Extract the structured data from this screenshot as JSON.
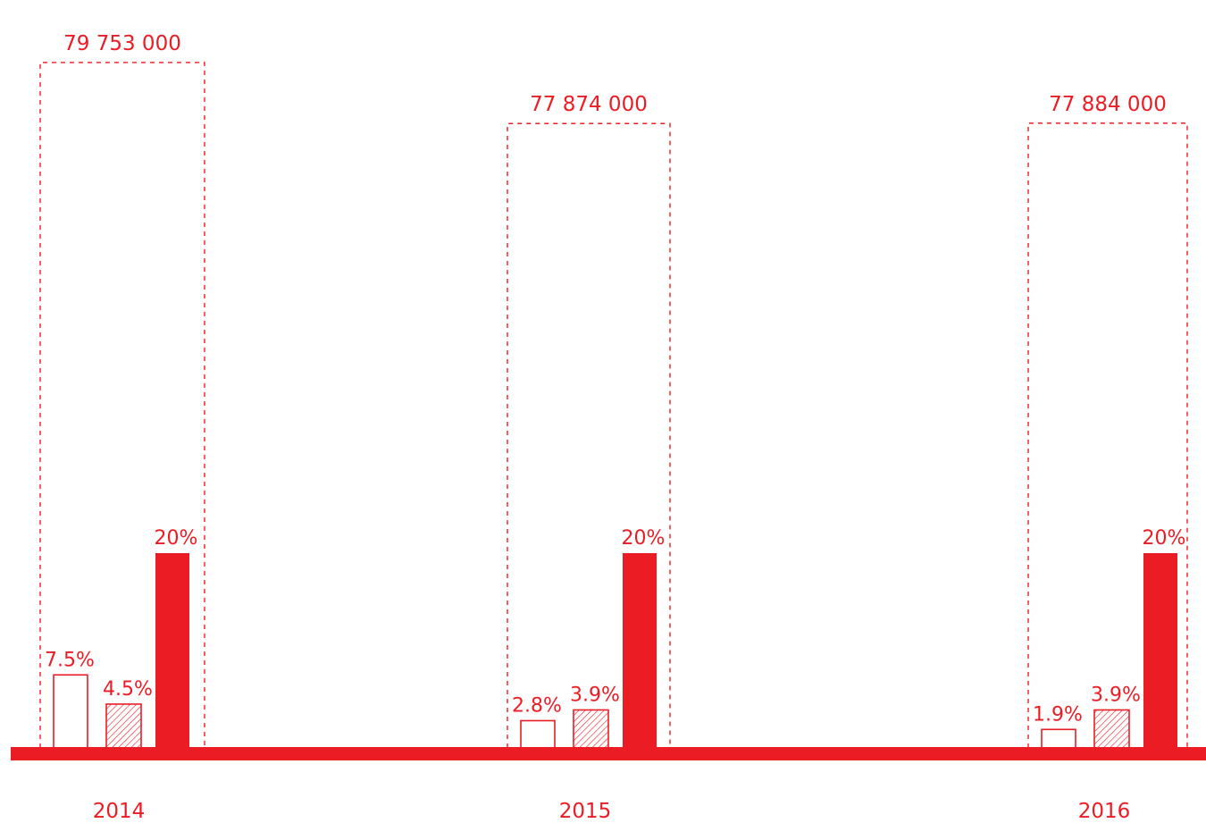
{
  "colors": {
    "accent": "#ec1c24",
    "background": "#ffffff"
  },
  "chart_data": {
    "type": "bar",
    "categories": [
      "2014",
      "2015",
      "2016"
    ],
    "totals": [
      "79 753 000",
      "77 874 000",
      "77 884 000"
    ],
    "total_values": [
      79753000,
      77874000,
      77884000
    ],
    "series": [
      {
        "style": "outline",
        "values": [
          7.5,
          2.8,
          1.9
        ],
        "labels": [
          "7.5%",
          "2.8%",
          "1.9%"
        ]
      },
      {
        "style": "hatched",
        "values": [
          4.5,
          3.9,
          3.9
        ],
        "labels": [
          "4.5%",
          "3.9%",
          "3.9%"
        ]
      },
      {
        "style": "solid",
        "values": [
          20,
          20,
          20
        ],
        "labels": [
          "20%",
          "20%",
          "20%"
        ]
      }
    ],
    "unit": "%",
    "grid": false,
    "legend": "none"
  }
}
